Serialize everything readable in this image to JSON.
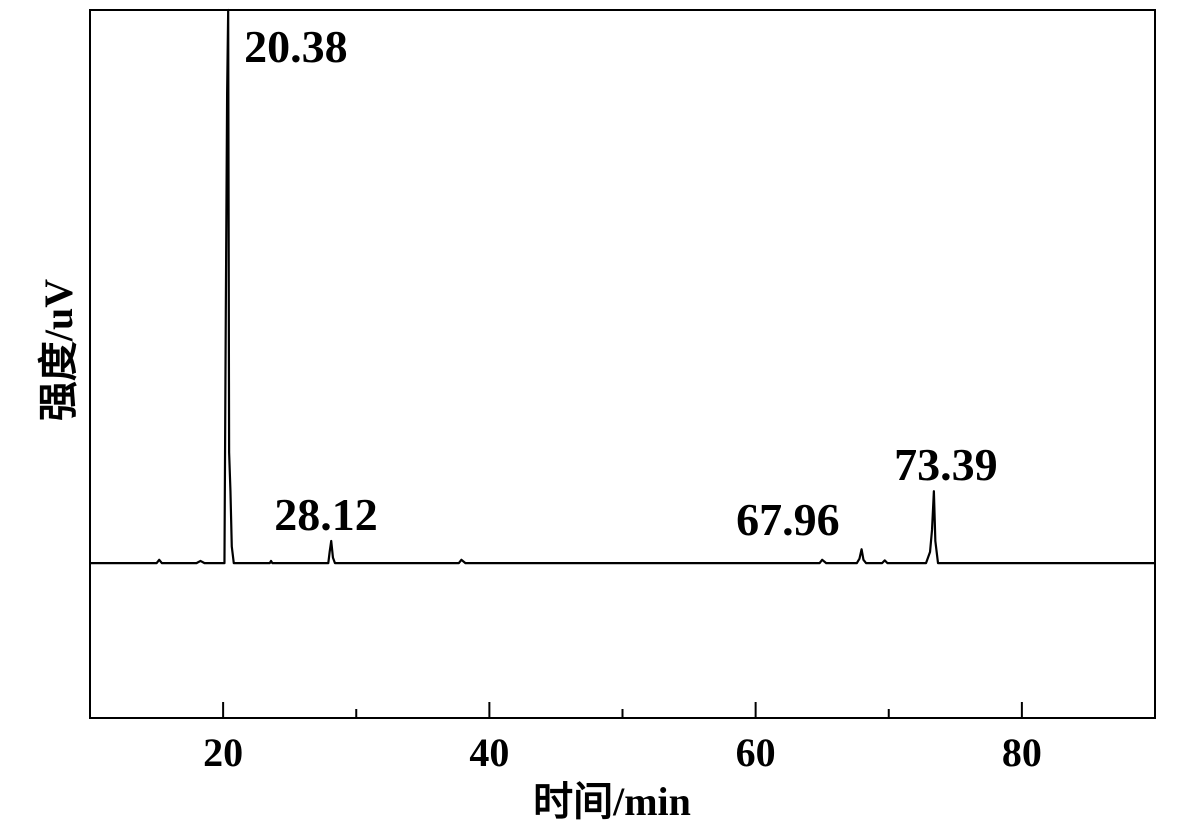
{
  "chart_data": {
    "type": "line",
    "xlabel": "时间/min",
    "ylabel": "强度/uV",
    "x": [
      10,
      15,
      15.2,
      15.4,
      18,
      18.3,
      18.6,
      20.1,
      20.2,
      20.3,
      20.38,
      20.45,
      20.55,
      20.65,
      20.8,
      21.5,
      23.5,
      23.6,
      23.7,
      27.9,
      28.0,
      28.12,
      28.25,
      28.4,
      37.7,
      37.9,
      38.2,
      64.8,
      65.0,
      65.3,
      67.6,
      67.8,
      67.96,
      68.1,
      68.3,
      69.5,
      69.7,
      69.9,
      72.8,
      73.1,
      73.25,
      73.39,
      73.5,
      73.7,
      90
    ],
    "series": [
      {
        "color": "#000000",
        "values": [
          0,
          0,
          0.6,
          0,
          0,
          0.4,
          0,
          0,
          45,
          85,
          100,
          20,
          13,
          3,
          0,
          0,
          0,
          0.4,
          0,
          0,
          2,
          4,
          1,
          0,
          0,
          0.6,
          0,
          0,
          0.6,
          0,
          0,
          0.8,
          2.5,
          0.6,
          0,
          0,
          0.5,
          0,
          0,
          2,
          6,
          13,
          4,
          0,
          0
        ]
      }
    ],
    "peak_labels": [
      20.38,
      28.12,
      67.96,
      73.39
    ],
    "xlim": [
      10,
      90
    ],
    "xticks": [
      20,
      40,
      60,
      80
    ],
    "xminor_ticks": [
      30,
      50,
      70
    ],
    "ylim": [
      -28,
      100
    ],
    "grid": false
  }
}
